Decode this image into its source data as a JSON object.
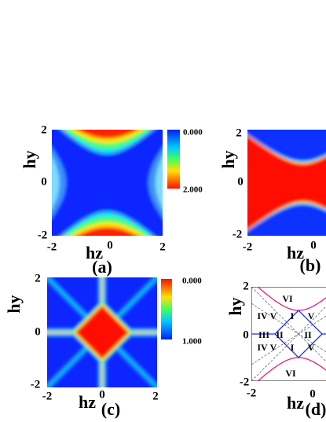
{
  "panels": [
    {
      "label": "(a)",
      "y_axis": "hy",
      "x_axis": "hz",
      "yticks": [
        "2",
        "0",
        "-2"
      ],
      "xticks": [
        "-2",
        "0",
        "2"
      ],
      "colorbar": [
        "0.000",
        "2.000"
      ]
    },
    {
      "label": "(b)",
      "y_axis": "hy",
      "x_axis": "hz",
      "yticks": [
        "2",
        "0",
        "-2"
      ],
      "xticks": [
        "-2",
        "0"
      ]
    },
    {
      "label": "(c)",
      "y_axis": "hy",
      "x_axis": "hz",
      "yticks": [
        "2",
        "0",
        "-2"
      ],
      "xticks": [
        "-2",
        "0",
        "2"
      ],
      "colorbar": [
        "0.000",
        "1.000"
      ]
    },
    {
      "label": "(d)",
      "y_axis": "hy",
      "x_axis": "hz",
      "yticks": [
        "2",
        "0",
        "-2"
      ],
      "xticks": [
        "-2",
        "0"
      ],
      "regions": [
        "VI",
        "IV",
        "V",
        "I",
        "V",
        "III",
        "II",
        "II",
        "IV",
        "V",
        "I",
        "V",
        "VI"
      ]
    }
  ]
}
